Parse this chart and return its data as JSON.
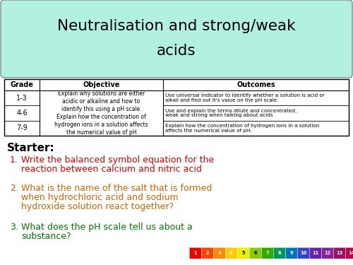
{
  "title_line1": "Neutralisation and strong/weak",
  "title_line2": "acids",
  "title_bg": "#b2f0e0",
  "title_border": "#888888",
  "bg_color": "#ffffff",
  "table_header": [
    "Grade",
    "Objective",
    "Outcomes"
  ],
  "objective_text": "Explain why solutions are either\nacidic or alkaline and how to\nidentify this using a pH scale.\nExplain how the concentration of\nhydrogen ions in a solution affects\nthe numerical value of pH",
  "grade_rows": [
    "1-3",
    "4-6",
    "7-9"
  ],
  "outcomes": [
    "Use universal indicator to identify whether a solution is acid or\nalkali and find out it's value on the pH scale.",
    "Use and explain the terms dilute and concentrated,\nweak and strong when talking about acids",
    "Explain how the concentration of hydrogen ions in a solution\naffects the numerical value of pH."
  ],
  "starter_label": "Starter:",
  "questions": [
    "Write the balanced symbol equation for the\nreaction between calcium and nitric acid",
    "What is the name of the salt that is formed\nwhen hydrochloric acid and sodium\nhydroxide solution react together?",
    "What does the pH scale tell us about a\nsubstance?"
  ],
  "q_colors": [
    "#dd0000",
    "#cc6600",
    "#007700"
  ],
  "ph_colors": [
    "#ee0000",
    "#ff4400",
    "#ff8800",
    "#ffcc00",
    "#eeee00",
    "#88cc00",
    "#33aa00",
    "#009955",
    "#0077bb",
    "#3344cc",
    "#6622aa",
    "#882299",
    "#991166",
    "#bb0044"
  ],
  "ph_labels": [
    "1",
    "2",
    "3",
    "4",
    "5",
    "6",
    "7",
    "8",
    "9",
    "10",
    "11",
    "12",
    "13",
    "14"
  ]
}
